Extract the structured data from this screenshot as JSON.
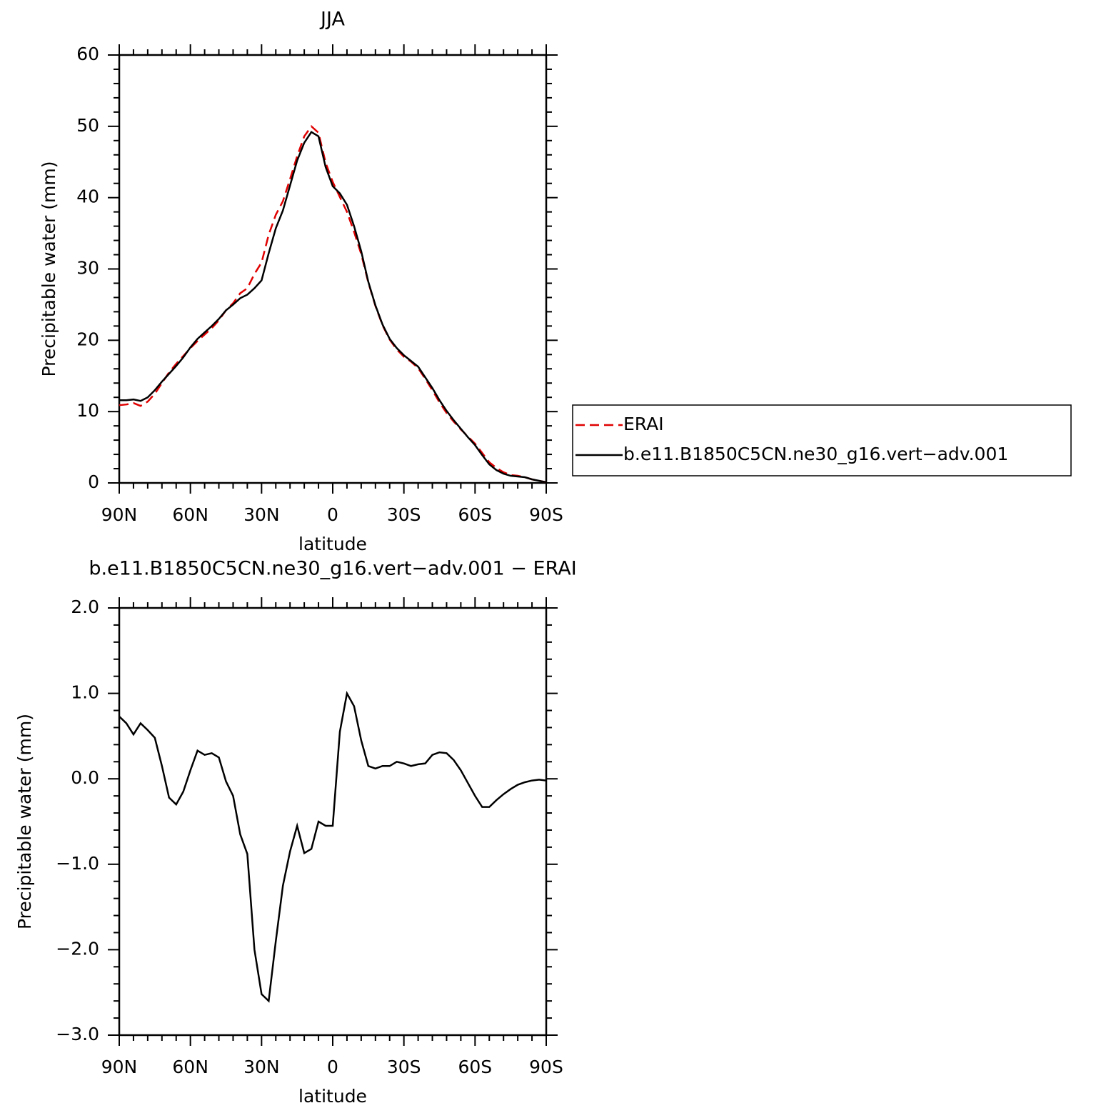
{
  "chart_data": [
    {
      "type": "line",
      "title": "JJA",
      "xlabel": "latitude",
      "ylabel": "Precipitable water (mm)",
      "x": [
        90,
        87,
        84,
        81,
        78,
        75,
        72,
        69,
        66,
        63,
        60,
        57,
        54,
        51,
        48,
        45,
        42,
        39,
        36,
        33,
        30,
        27,
        24,
        21,
        18,
        15,
        12,
        9,
        6,
        3,
        0,
        -3,
        -6,
        -9,
        -12,
        -15,
        -18,
        -21,
        -24,
        -27,
        -30,
        -33,
        -36,
        -39,
        -42,
        -45,
        -48,
        -51,
        -54,
        -57,
        -60,
        -63,
        -66,
        -69,
        -72,
        -75,
        -78,
        -81,
        -84,
        -87,
        -90
      ],
      "series": [
        {
          "name": "ERAI",
          "color": "#e00000",
          "linestyle": "dashed",
          "values": [
            10.9,
            11.0,
            11.2,
            10.8,
            11.4,
            12.5,
            14.0,
            15.5,
            16.7,
            17.8,
            18.9,
            19.9,
            20.8,
            21.7,
            22.8,
            24.2,
            25.2,
            26.6,
            27.3,
            29.3,
            30.9,
            34.8,
            37.6,
            39.5,
            42.6,
            45.8,
            48.6,
            50.0,
            49.1,
            44.9,
            42.2,
            40.1,
            38.0,
            35.2,
            32.1,
            28.1,
            24.8,
            22.1,
            20.1,
            18.7,
            17.7,
            17.0,
            16.1,
            14.6,
            13.0,
            11.3,
            9.8,
            8.6,
            7.5,
            6.5,
            5.5,
            4.2,
            2.9,
            2.1,
            1.5,
            1.1,
            1.0,
            0.8,
            0.5,
            0.3,
            0.1
          ]
        },
        {
          "name": "b.e11.B1850C5CN.ne30_g16.vert−adv.001",
          "color": "#000000",
          "linestyle": "solid",
          "values": [
            11.6,
            11.6,
            11.7,
            11.5,
            12.0,
            13.0,
            14.2,
            15.3,
            16.4,
            17.6,
            19.0,
            20.2,
            21.1,
            22.0,
            23.0,
            24.2,
            25.0,
            25.9,
            26.4,
            27.3,
            28.4,
            32.2,
            35.7,
            38.2,
            41.7,
            45.2,
            47.7,
            49.2,
            48.6,
            44.3,
            41.6,
            40.6,
            39.0,
            36.0,
            32.5,
            28.2,
            24.9,
            22.2,
            20.2,
            18.9,
            17.9,
            17.1,
            16.3,
            14.8,
            13.3,
            11.6,
            10.1,
            8.8,
            7.6,
            6.4,
            5.3,
            3.9,
            2.6,
            1.8,
            1.3,
            1.0,
            0.9,
            0.8,
            0.5,
            0.3,
            0.1
          ]
        }
      ],
      "xlim": [
        90,
        -90
      ],
      "xticks": [
        {
          "value": 90,
          "label": "90N"
        },
        {
          "value": 60,
          "label": "60N"
        },
        {
          "value": 30,
          "label": "30N"
        },
        0,
        {
          "value": -30,
          "label": "30S"
        },
        {
          "value": -60,
          "label": "60S"
        },
        {
          "value": -90,
          "label": "90S"
        }
      ],
      "ylim": [
        0,
        60
      ],
      "yticks": [
        0,
        10,
        20,
        30,
        40,
        50,
        60
      ]
    },
    {
      "type": "line",
      "title": "b.e11.B1850C5CN.ne30_g16.vert−adv.001  −  ERAI",
      "xlabel": "latitude",
      "ylabel": "Precipitable water (mm)",
      "x": [
        90,
        87,
        84,
        81,
        78,
        75,
        72,
        69,
        66,
        63,
        60,
        57,
        54,
        51,
        48,
        45,
        42,
        39,
        36,
        33,
        30,
        27,
        24,
        21,
        18,
        15,
        12,
        9,
        6,
        3,
        0,
        -3,
        -6,
        -9,
        -12,
        -15,
        -18,
        -21,
        -24,
        -27,
        -30,
        -33,
        -36,
        -39,
        -42,
        -45,
        -48,
        -51,
        -54,
        -57,
        -60,
        -63,
        -66,
        -69,
        -72,
        -75,
        -78,
        -81,
        -84,
        -87,
        -90
      ],
      "color": "#000000",
      "values": [
        0.73,
        0.65,
        0.52,
        0.65,
        0.57,
        0.48,
        0.15,
        -0.22,
        -0.3,
        -0.15,
        0.1,
        0.33,
        0.28,
        0.3,
        0.25,
        -0.03,
        -0.2,
        -0.65,
        -0.88,
        -2.0,
        -2.52,
        -2.6,
        -1.9,
        -1.25,
        -0.85,
        -0.55,
        -0.87,
        -0.82,
        -0.5,
        -0.55,
        -0.55,
        0.55,
        1.0,
        0.85,
        0.45,
        0.15,
        0.12,
        0.15,
        0.15,
        0.2,
        0.18,
        0.15,
        0.17,
        0.18,
        0.28,
        0.31,
        0.3,
        0.22,
        0.1,
        -0.05,
        -0.2,
        -0.33,
        -0.33,
        -0.25,
        -0.18,
        -0.12,
        -0.07,
        -0.04,
        -0.02,
        -0.01,
        -0.02
      ],
      "xlim": [
        90,
        -90
      ],
      "xticks": [
        {
          "value": 90,
          "label": "90N"
        },
        {
          "value": 60,
          "label": "60N"
        },
        {
          "value": 30,
          "label": "30N"
        },
        0,
        {
          "value": -30,
          "label": "30S"
        },
        {
          "value": -60,
          "label": "60S"
        },
        {
          "value": -90,
          "label": "90S"
        }
      ],
      "ylim": [
        -3,
        2
      ],
      "yticks": [
        {
          "value": -3,
          "label": "−3.0"
        },
        {
          "value": -2,
          "label": "−2.0"
        },
        {
          "value": -1,
          "label": "−1.0"
        },
        {
          "value": 0,
          "label": "0.0"
        },
        {
          "value": 1,
          "label": "1.0"
        },
        {
          "value": 2,
          "label": "2.0"
        }
      ]
    }
  ]
}
